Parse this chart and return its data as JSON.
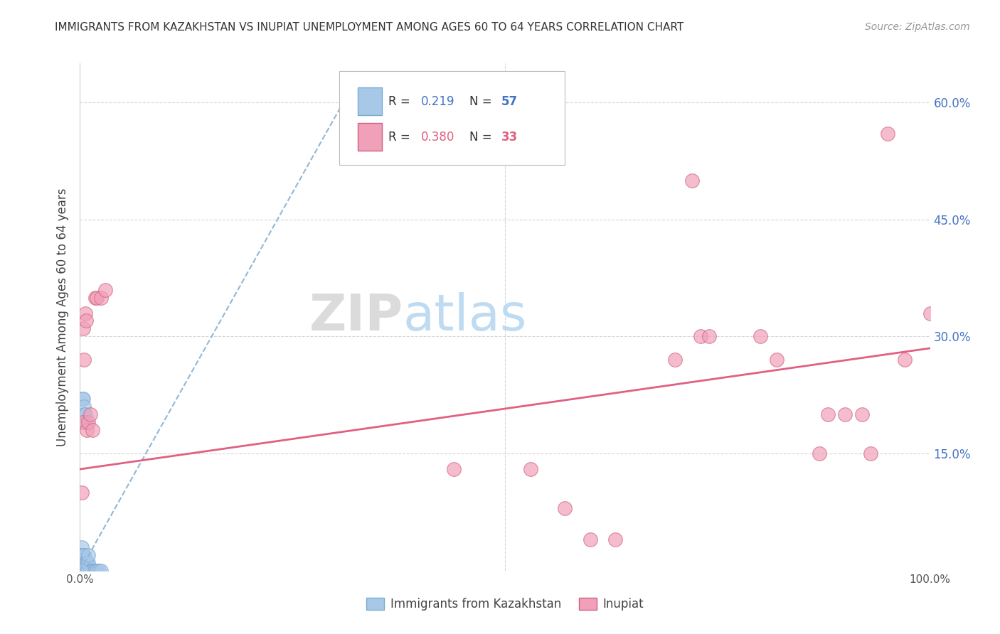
{
  "title": "IMMIGRANTS FROM KAZAKHSTAN VS INUPIAT UNEMPLOYMENT AMONG AGES 60 TO 64 YEARS CORRELATION CHART",
  "source": "Source: ZipAtlas.com",
  "ylabel": "Unemployment Among Ages 60 to 64 years",
  "background_color": "#ffffff",
  "grid_color": "#cccccc",
  "xlim": [
    0,
    1.0
  ],
  "ylim": [
    0,
    0.65
  ],
  "xticks": [
    0.0,
    0.1,
    0.2,
    0.3,
    0.4,
    0.5,
    0.6,
    0.7,
    0.8,
    0.9,
    1.0
  ],
  "xticklabels": [
    "0.0%",
    "",
    "",
    "",
    "",
    "",
    "",
    "",
    "",
    "",
    "100.0%"
  ],
  "yticks": [
    0.0,
    0.15,
    0.3,
    0.45,
    0.6
  ],
  "yticklabels_right": [
    "",
    "15.0%",
    "30.0%",
    "45.0%",
    "60.0%"
  ],
  "legend_r1": "0.219",
  "legend_n1": "57",
  "legend_r2": "0.380",
  "legend_n2": "33",
  "blue_color": "#a8c8e8",
  "blue_edge": "#7aaad0",
  "pink_color": "#f0a0b8",
  "pink_edge": "#d06080",
  "blue_trend_color": "#90b8d8",
  "pink_trend_color": "#e06080",
  "blue_scatter_x": [
    0.002,
    0.002,
    0.002,
    0.002,
    0.002,
    0.002,
    0.002,
    0.002,
    0.002,
    0.002,
    0.002,
    0.002,
    0.002,
    0.002,
    0.002,
    0.002,
    0.002,
    0.003,
    0.003,
    0.003,
    0.003,
    0.003,
    0.004,
    0.004,
    0.004,
    0.004,
    0.004,
    0.004,
    0.004,
    0.005,
    0.005,
    0.005,
    0.006,
    0.006,
    0.007,
    0.007,
    0.008,
    0.009,
    0.009,
    0.01,
    0.01,
    0.01,
    0.012,
    0.013,
    0.015,
    0.016,
    0.018,
    0.02,
    0.022,
    0.025,
    0.003,
    0.004,
    0.005,
    0.005,
    0.006,
    0.007,
    0.002
  ],
  "blue_scatter_y": [
    0.0,
    0.0,
    0.0,
    0.0,
    0.0,
    0.0,
    0.0,
    0.0,
    0.0,
    0.0,
    0.01,
    0.01,
    0.01,
    0.02,
    0.02,
    0.02,
    0.03,
    0.0,
    0.0,
    0.01,
    0.01,
    0.02,
    0.0,
    0.0,
    0.0,
    0.01,
    0.01,
    0.02,
    0.02,
    0.0,
    0.01,
    0.02,
    0.0,
    0.01,
    0.0,
    0.01,
    0.0,
    0.0,
    0.01,
    0.0,
    0.01,
    0.02,
    0.0,
    0.0,
    0.0,
    0.0,
    0.0,
    0.0,
    0.0,
    0.0,
    0.22,
    0.22,
    0.21,
    0.2,
    0.2,
    0.19,
    0.0
  ],
  "pink_scatter_x": [
    0.002,
    0.003,
    0.004,
    0.005,
    0.006,
    0.007,
    0.008,
    0.01,
    0.012,
    0.015,
    0.018,
    0.02,
    0.025,
    0.03,
    0.44,
    0.53,
    0.57,
    0.6,
    0.63,
    0.7,
    0.72,
    0.73,
    0.74,
    0.8,
    0.82,
    0.87,
    0.88,
    0.9,
    0.92,
    0.93,
    0.95,
    0.97,
    1.0
  ],
  "pink_scatter_y": [
    0.1,
    0.19,
    0.31,
    0.27,
    0.33,
    0.32,
    0.18,
    0.19,
    0.2,
    0.18,
    0.35,
    0.35,
    0.35,
    0.36,
    0.13,
    0.13,
    0.08,
    0.04,
    0.04,
    0.27,
    0.5,
    0.3,
    0.3,
    0.3,
    0.27,
    0.15,
    0.2,
    0.2,
    0.2,
    0.15,
    0.56,
    0.27,
    0.33
  ],
  "blue_trend_x0": 0.0,
  "blue_trend_y0": 0.0,
  "blue_trend_x1": 0.32,
  "blue_trend_y1": 0.62,
  "pink_trend_x0": 0.0,
  "pink_trend_y0": 0.13,
  "pink_trend_x1": 1.0,
  "pink_trend_y1": 0.285
}
